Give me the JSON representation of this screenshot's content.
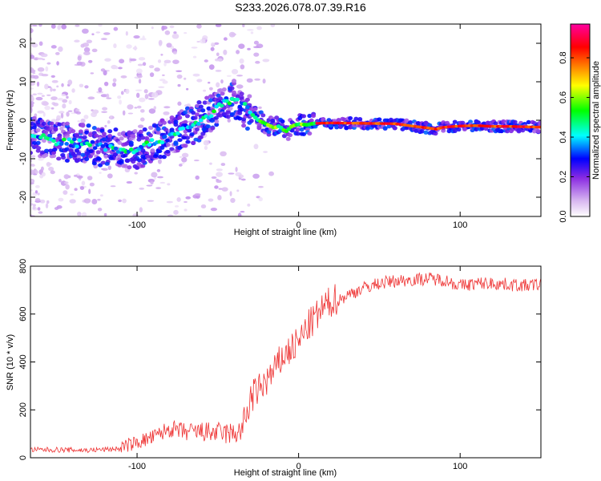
{
  "title": "S233.2026.078.07.39.R16",
  "chart_data": [
    {
      "type": "heatmap",
      "xlabel": "Height of straight line (km)",
      "ylabel": "Frequency (Hz)",
      "xlim": [
        -166,
        150
      ],
      "ylim": [
        -25,
        25
      ],
      "xticks": [
        -100,
        0,
        100
      ],
      "yticks": [
        -20,
        -10,
        0,
        10,
        20
      ],
      "colorbar": {
        "label": "Normalized spectral amplitude",
        "range": [
          0.0,
          0.97
        ],
        "ticks": [
          "0.0",
          "0.2",
          "0.4",
          "0.6",
          "0.8"
        ],
        "tick_values": [
          0.0,
          0.2,
          0.4,
          0.6,
          0.8
        ],
        "colors": [
          "#ffffff",
          "#d8b8f0",
          "#8a2be2",
          "#0000ff",
          "#00ffff",
          "#00ff00",
          "#ffff00",
          "#ff8000",
          "#ff0000",
          "#ff00a0"
        ]
      },
      "ridge": {
        "x": [
          -166,
          -150,
          -130,
          -120,
          -110,
          -100,
          -90,
          -80,
          -70,
          -60,
          -50,
          -45,
          -40,
          -35,
          -30,
          -25,
          -20,
          -15,
          -12,
          -8,
          -4,
          0,
          5,
          10,
          20,
          40,
          60,
          70,
          80,
          85,
          90,
          100,
          110,
          120,
          130,
          140,
          150
        ],
        "y": [
          -4,
          -5.5,
          -6,
          -7,
          -7.5,
          -7.5,
          -6,
          -4,
          -2,
          0,
          3,
          5,
          5.5,
          4,
          2,
          0,
          -1,
          -2,
          -1.5,
          -3,
          -1.5,
          -1,
          -1.2,
          -0.8,
          -0.7,
          -0.8,
          -0.9,
          -1.5,
          -2,
          -2.3,
          -1.8,
          -1.5,
          -1.4,
          -1.6,
          -1.6,
          -1.7,
          -1.8
        ]
      }
    },
    {
      "type": "line",
      "xlabel": "Height of straight line (km)",
      "ylabel": "SNR (10 * v/v)",
      "xlim": [
        -166,
        150
      ],
      "ylim": [
        0,
        800
      ],
      "xticks": [
        -100,
        0,
        100
      ],
      "yticks": [
        0,
        200,
        400,
        600,
        800
      ],
      "series": [
        {
          "name": "SNR",
          "color": "#ee3333",
          "x": [
            -166,
            -150,
            -130,
            -110,
            -100,
            -90,
            -80,
            -70,
            -60,
            -50,
            -40,
            -35,
            -32,
            -30,
            -28,
            -25,
            -20,
            -15,
            -10,
            -5,
            0,
            5,
            10,
            15,
            20,
            25,
            30,
            40,
            50,
            60,
            70,
            80,
            90,
            100,
            110,
            120,
            130,
            140,
            150
          ],
          "y": [
            30,
            30,
            28,
            35,
            55,
            75,
            110,
            95,
            95,
            90,
            85,
            100,
            160,
            220,
            240,
            260,
            300,
            340,
            400,
            430,
            460,
            520,
            560,
            600,
            630,
            650,
            670,
            700,
            720,
            730,
            735,
            740,
            735,
            710,
            720,
            720,
            715,
            710,
            715
          ]
        }
      ]
    }
  ]
}
